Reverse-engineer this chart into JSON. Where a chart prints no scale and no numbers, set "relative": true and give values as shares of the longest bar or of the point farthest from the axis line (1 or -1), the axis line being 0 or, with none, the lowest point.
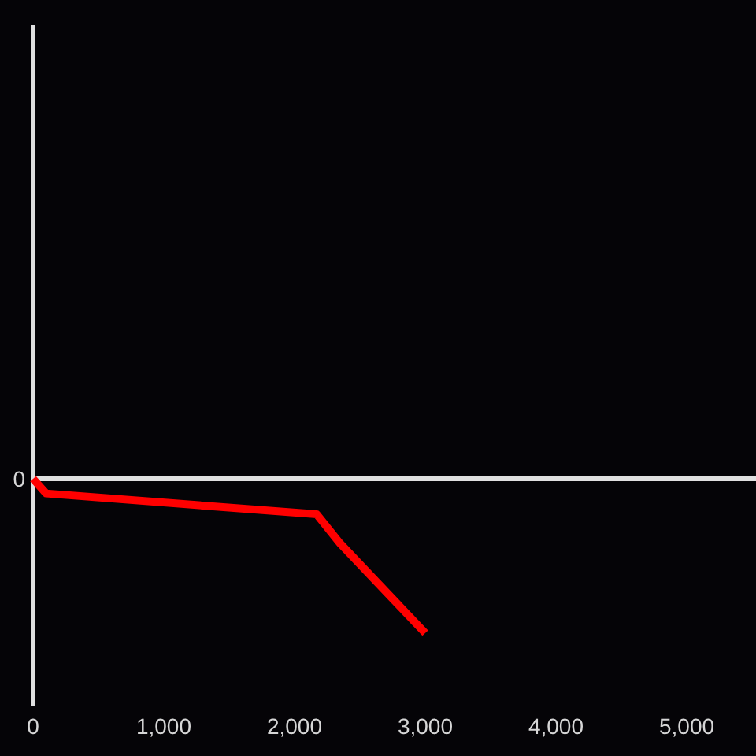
{
  "chart_data": {
    "type": "line",
    "relative": true,
    "x": [
      0,
      100,
      2170,
      2350,
      3000
    ],
    "series": [
      {
        "color": "#ff0000",
        "values": [
          0,
          -0.095,
          -0.23,
          -0.42,
          -1
        ]
      }
    ],
    "xlim": [
      0,
      5530
    ],
    "xticks": [
      0,
      {
        "value": 1000,
        "label": "1,000"
      },
      {
        "value": 2000,
        "label": "2,000"
      },
      {
        "value": 3000,
        "label": "3,000"
      },
      {
        "value": 4000,
        "label": "4,000"
      },
      {
        "value": 5000,
        "label": "5,000"
      }
    ],
    "ref_lines": [
      {
        "axis": "y",
        "value": 0,
        "label": "0",
        "color": "#e0e0e0"
      }
    ]
  }
}
